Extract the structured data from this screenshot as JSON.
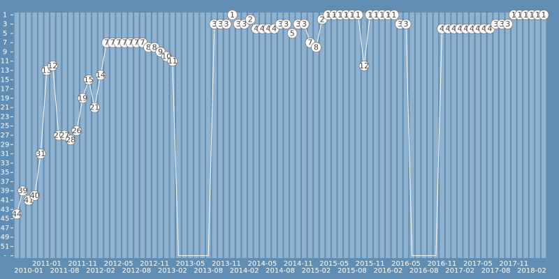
{
  "chart_data": {
    "type": "line",
    "inverted_y": true,
    "categories": [
      null,
      null,
      "2010-01",
      null,
      null,
      "2011-01",
      null,
      null,
      "2011-08",
      null,
      null,
      "2011-11",
      null,
      null,
      "2012-02",
      null,
      null,
      "2012-05",
      null,
      null,
      "2012-08",
      null,
      null,
      "2012-11",
      null,
      null,
      "2013-02",
      null,
      null,
      "2013-05",
      null,
      null,
      "2013-08",
      null,
      null,
      "2013-11",
      null,
      null,
      "2014-02",
      null,
      null,
      "2014-05",
      null,
      null,
      "2014-08",
      null,
      null,
      "2014-11",
      null,
      null,
      "2015-02",
      null,
      null,
      "2015-05",
      null,
      null,
      "2015-08",
      null,
      null,
      "2015-11",
      null,
      null,
      "2016-02",
      null,
      null,
      "2016-05",
      null,
      null,
      "2016-08",
      null,
      null,
      "2016-11",
      null,
      null,
      "2017-02",
      null,
      null,
      "2017-05",
      null,
      null,
      "2017-08",
      null,
      null,
      "2017-11",
      null,
      null,
      "2018-02",
      null,
      null
    ],
    "series": [
      {
        "color": "#ffffff",
        "values": [
          44,
          39,
          41,
          40,
          31,
          13,
          12,
          27,
          27,
          28,
          26,
          19,
          15,
          21,
          14,
          7,
          7,
          7,
          7,
          7,
          7,
          7,
          8,
          8,
          9,
          10,
          11,
          null,
          null,
          null,
          null,
          null,
          null,
          3,
          3,
          3,
          1,
          3,
          3,
          2,
          4,
          4,
          4,
          4,
          3,
          3,
          5,
          3,
          3,
          7,
          8,
          2,
          1,
          1,
          1,
          1,
          1,
          1,
          12,
          1,
          1,
          1,
          1,
          1,
          3,
          3,
          null,
          null,
          null,
          null,
          null,
          4,
          4,
          4,
          4,
          4,
          4,
          4,
          4,
          4,
          3,
          3,
          3,
          1,
          1,
          1,
          1,
          1,
          1
        ]
      }
    ],
    "ylim": [
      53.5,
      0.5
    ],
    "yticks": [
      1,
      3,
      5,
      7,
      9,
      11,
      13,
      15,
      17,
      19,
      21,
      23,
      25,
      27,
      29,
      31,
      33,
      35,
      37,
      39,
      41,
      43,
      45,
      47,
      49,
      51,
      {
        "value": 53,
        "label": "-"
      }
    ]
  }
}
